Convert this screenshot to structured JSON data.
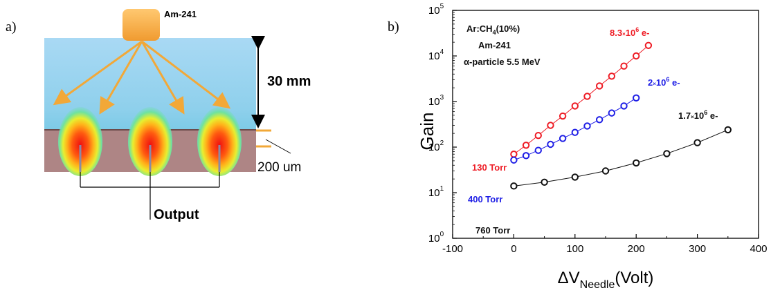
{
  "panel_a": {
    "label": "a)",
    "source_label": "Am-241",
    "height_label": "30 mm",
    "pitch_label": "200 um",
    "output_label": "Output"
  },
  "panel_b": {
    "label": "b)",
    "annotations": {
      "gas_main": "Ar:CH",
      "gas_sub": "4",
      "gas_tail": "(10%)",
      "source": "Am-241",
      "particle": "α-particle 5.5 MeV",
      "e130_pre": "8.3",
      "e130_times": "×",
      "e130_base": "10",
      "e130_exp": "6",
      "e130_post": " e-",
      "e400_pre": "2",
      "e400_times": "×",
      "e400_base": "10",
      "e400_exp": "6",
      "e400_post": " e-",
      "e760_pre": "1.7",
      "e760_times": "×",
      "e760_base": "10",
      "e760_exp": "6",
      "e760_post": " e-"
    },
    "ylabel": "Gain",
    "xlabel_main": "ΔV",
    "xlabel_sub": "Needle",
    "xlabel_tail": "(Volt)"
  },
  "colors": {
    "red": "#ee1c25",
    "blue": "#1f1fe6",
    "black": "#111111",
    "orange": "#f2a838"
  },
  "chart_data": {
    "type": "scatter",
    "xlim": [
      -100,
      400
    ],
    "ylim": [
      1,
      100000
    ],
    "yscale": "log",
    "xticks": [
      -100,
      0,
      100,
      200,
      300,
      400
    ],
    "ytick_labels": [
      {
        "base": "10",
        "exp": "0",
        "value": 1
      },
      {
        "base": "10",
        "exp": "1",
        "value": 10
      },
      {
        "base": "10",
        "exp": "2",
        "value": 100
      },
      {
        "base": "10",
        "exp": "3",
        "value": 1000
      },
      {
        "base": "10",
        "exp": "4",
        "value": 10000
      },
      {
        "base": "10",
        "exp": "5",
        "value": 100000
      }
    ],
    "series": [
      {
        "name": "130 Torr",
        "color": "#ee1c25",
        "x": [
          0,
          20,
          40,
          60,
          80,
          100,
          120,
          140,
          160,
          180,
          200,
          220
        ],
        "y": [
          70,
          110,
          180,
          300,
          480,
          800,
          1300,
          2200,
          3600,
          6000,
          10000,
          17000
        ]
      },
      {
        "name": "400 Torr",
        "color": "#1f1fe6",
        "x": [
          0,
          20,
          40,
          60,
          80,
          100,
          120,
          140,
          160,
          180,
          200
        ],
        "y": [
          52,
          65,
          85,
          115,
          155,
          210,
          290,
          400,
          560,
          800,
          1200
        ]
      },
      {
        "name": "760 Torr",
        "color": "#111111",
        "x": [
          0,
          50,
          100,
          150,
          200,
          250,
          300,
          350
        ],
        "y": [
          14,
          17,
          22,
          30,
          45,
          72,
          125,
          240
        ]
      }
    ]
  }
}
